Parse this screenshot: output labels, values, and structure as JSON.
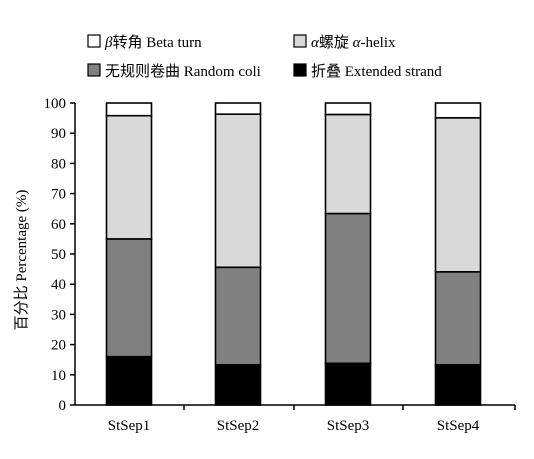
{
  "chart_data": {
    "type": "bar",
    "stacked": true,
    "categories": [
      "StSep1",
      "StSep2",
      "StSep3",
      "StSep4"
    ],
    "series": [
      {
        "name": "折叠 Extended strand",
        "color": "#000000",
        "values": [
          16,
          13.3,
          13.8,
          13.3
        ]
      },
      {
        "name": "无规则卷曲 Random coli",
        "color": "#808080",
        "values": [
          39,
          32.3,
          49.6,
          30.8
        ]
      },
      {
        "name": "α螺旋 α-helix",
        "color": "#d9d9d9",
        "values": [
          40.8,
          50.7,
          32.8,
          51
        ]
      },
      {
        "name": "β转角 Beta turn",
        "color": "#ffffff",
        "values": [
          4.2,
          3.7,
          3.8,
          4.9
        ]
      }
    ],
    "ylabel": "百分比 Percentage (%)",
    "xlabel": "",
    "ylim": [
      0,
      100
    ],
    "yticks": [
      0,
      10,
      20,
      30,
      40,
      50,
      60,
      70,
      80,
      90,
      100
    ],
    "grid": false,
    "legend": {
      "placement": "top",
      "rows": [
        [
          {
            "series": 3,
            "prefix": "β",
            "text": "转角 Beta turn"
          },
          {
            "series": 2,
            "prefix": "α",
            "text": "螺旋 ",
            "prefix2": "α",
            "text2": "-helix"
          }
        ],
        [
          {
            "series": 1,
            "text": "无规则卷曲 Random coli"
          },
          {
            "series": 0,
            "text": "折叠 Extended strand"
          }
        ]
      ]
    }
  }
}
